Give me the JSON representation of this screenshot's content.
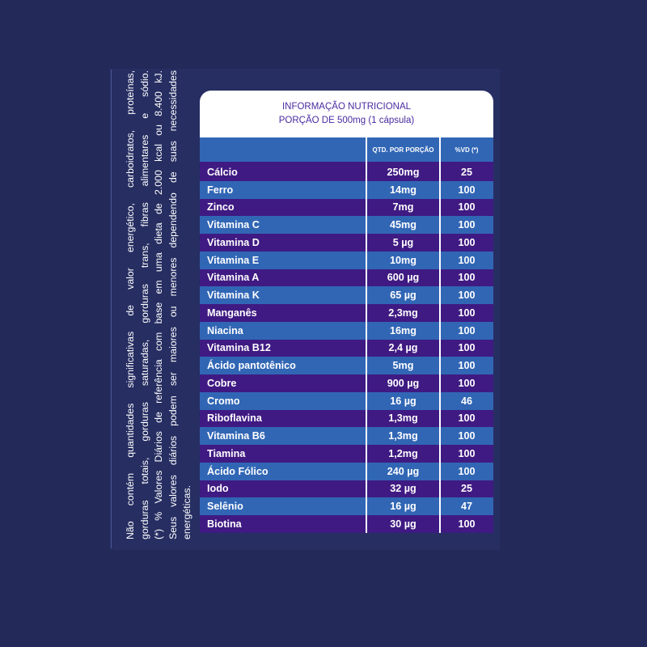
{
  "side_note": {
    "line1": "Não contém quantidades significativas de valor energético, carboidratos, proteínas,",
    "line2": "gorduras totais, gorduras saturadas, gorduras trans, fibras alimentares e sódio.",
    "line3": "(*) % Valores Diários de referência com base em uma dieta de 2.000 kcal ou 8.400 kJ.",
    "line4": "Seus valores diários podem ser maiores ou menores dependendo de suas necessidades",
    "line5": "energéticas."
  },
  "table": {
    "title": "INFORMAÇÃO NUTRICIONAL",
    "portion": "PORÇÃO DE 500mg (1 cápsula)",
    "col_qty": "QTD. POR PORÇÃO",
    "col_vd": "%VD (*)",
    "rows": [
      {
        "name": "Cálcio",
        "qty": "250mg",
        "vd": "25"
      },
      {
        "name": "Ferro",
        "qty": "14mg",
        "vd": "100"
      },
      {
        "name": "Zinco",
        "qty": "7mg",
        "vd": "100"
      },
      {
        "name": "Vitamina C",
        "qty": "45mg",
        "vd": "100"
      },
      {
        "name": "Vitamina D",
        "qty": "5 µg",
        "vd": "100"
      },
      {
        "name": "Vitamina E",
        "qty": "10mg",
        "vd": "100"
      },
      {
        "name": "Vitamina A",
        "qty": "600 µg",
        "vd": "100"
      },
      {
        "name": "Vitamina K",
        "qty": "65 µg",
        "vd": "100"
      },
      {
        "name": "Manganês",
        "qty": "2,3mg",
        "vd": "100"
      },
      {
        "name": "Niacina",
        "qty": "16mg",
        "vd": "100"
      },
      {
        "name": "Vitamina B12",
        "qty": "2,4 µg",
        "vd": "100"
      },
      {
        "name": "Ácido pantotênico",
        "qty": "5mg",
        "vd": "100"
      },
      {
        "name": "Cobre",
        "qty": "900 µg",
        "vd": "100"
      },
      {
        "name": "Cromo",
        "qty": "16 µg",
        "vd": "46"
      },
      {
        "name": "Riboflavina",
        "qty": "1,3mg",
        "vd": "100"
      },
      {
        "name": "Vitamina B6",
        "qty": "1,3mg",
        "vd": "100"
      },
      {
        "name": "Tiamina",
        "qty": "1,2mg",
        "vd": "100"
      },
      {
        "name": "Ácido Fólico",
        "qty": "240 µg",
        "vd": "100"
      },
      {
        "name": "Iodo",
        "qty": "32 µg",
        "vd": "25"
      },
      {
        "name": "Selênio",
        "qty": "16 µg",
        "vd": "47"
      },
      {
        "name": "Biotina",
        "qty": "30 µg",
        "vd": "100"
      }
    ]
  }
}
